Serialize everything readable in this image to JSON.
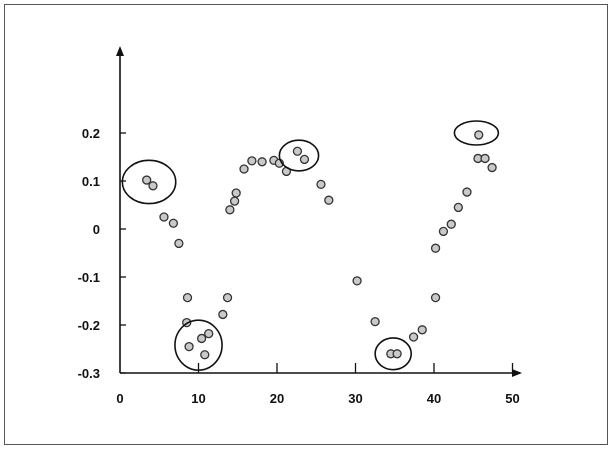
{
  "chart_data": {
    "type": "scatter",
    "title": "",
    "xlabel": "",
    "ylabel": "",
    "xlim": [
      0,
      51
    ],
    "ylim": [
      -0.3,
      0.3
    ],
    "x_ticks": [
      {
        "value": 0,
        "label": "0"
      },
      {
        "value": 10,
        "label": "10"
      },
      {
        "value": 20,
        "label": "20"
      },
      {
        "value": 30,
        "label": "30"
      },
      {
        "value": 40,
        "label": "40"
      },
      {
        "value": 50,
        "label": "50"
      }
    ],
    "y_ticks": [
      {
        "value": 0.2,
        "label": "0.2"
      },
      {
        "value": 0.1,
        "label": "0.1"
      },
      {
        "value": 0,
        "label": "0"
      },
      {
        "value": -0.1,
        "label": "-0.1"
      },
      {
        "value": -0.2,
        "label": "-0.2"
      },
      {
        "value": -0.3,
        "label": "-0.3"
      }
    ],
    "grid": false,
    "series": [
      {
        "points": [
          {
            "x": 3.4,
            "y": 0.102
          },
          {
            "x": 4.2,
            "y": 0.09
          },
          {
            "x": 5.6,
            "y": 0.025
          },
          {
            "x": 6.8,
            "y": 0.012
          },
          {
            "x": 7.5,
            "y": -0.03
          },
          {
            "x": 8.6,
            "y": -0.143
          },
          {
            "x": 8.5,
            "y": -0.195
          },
          {
            "x": 8.8,
            "y": -0.245
          },
          {
            "x": 10.4,
            "y": -0.228
          },
          {
            "x": 11.3,
            "y": -0.218
          },
          {
            "x": 10.8,
            "y": -0.262
          },
          {
            "x": 13.1,
            "y": -0.178
          },
          {
            "x": 13.7,
            "y": -0.143
          },
          {
            "x": 14.0,
            "y": 0.04
          },
          {
            "x": 14.6,
            "y": 0.058
          },
          {
            "x": 14.8,
            "y": 0.075
          },
          {
            "x": 15.8,
            "y": 0.125
          },
          {
            "x": 16.8,
            "y": 0.142
          },
          {
            "x": 18.1,
            "y": 0.14
          },
          {
            "x": 19.6,
            "y": 0.143
          },
          {
            "x": 20.3,
            "y": 0.137
          },
          {
            "x": 21.2,
            "y": 0.12
          },
          {
            "x": 22.6,
            "y": 0.162
          },
          {
            "x": 23.5,
            "y": 0.145
          },
          {
            "x": 25.6,
            "y": 0.093
          },
          {
            "x": 26.6,
            "y": 0.06
          },
          {
            "x": 30.2,
            "y": -0.108
          },
          {
            "x": 32.5,
            "y": -0.193
          },
          {
            "x": 34.5,
            "y": -0.26
          },
          {
            "x": 35.3,
            "y": -0.26
          },
          {
            "x": 37.4,
            "y": -0.225
          },
          {
            "x": 38.5,
            "y": -0.21
          },
          {
            "x": 40.2,
            "y": -0.143
          },
          {
            "x": 40.2,
            "y": -0.04
          },
          {
            "x": 41.2,
            "y": -0.005
          },
          {
            "x": 42.2,
            "y": 0.01
          },
          {
            "x": 43.1,
            "y": 0.045
          },
          {
            "x": 44.2,
            "y": 0.077
          },
          {
            "x": 45.7,
            "y": 0.196
          },
          {
            "x": 45.6,
            "y": 0.147
          },
          {
            "x": 46.5,
            "y": 0.147
          },
          {
            "x": 47.4,
            "y": 0.128
          }
        ]
      }
    ],
    "highlights": [
      {
        "cx": 3.7,
        "cy": 0.098,
        "rx": 3.4,
        "ry": 0.045
      },
      {
        "cx": 10.0,
        "cy": -0.242,
        "rx": 3.0,
        "ry": 0.052
      },
      {
        "cx": 22.8,
        "cy": 0.153,
        "rx": 2.5,
        "ry": 0.032
      },
      {
        "cx": 34.8,
        "cy": -0.26,
        "rx": 2.3,
        "ry": 0.033
      },
      {
        "cx": 45.4,
        "cy": 0.2,
        "rx": 2.8,
        "ry": 0.025
      }
    ]
  }
}
